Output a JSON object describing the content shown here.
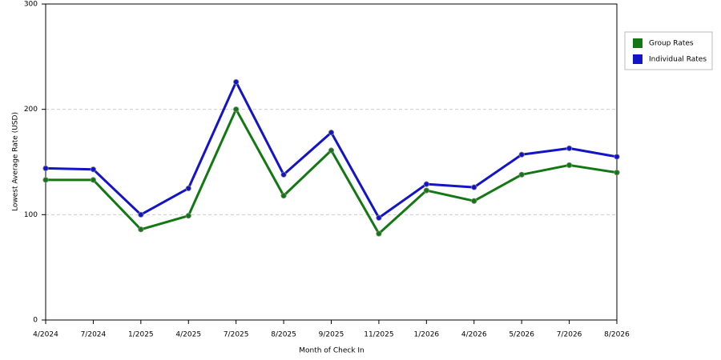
{
  "chart_data": {
    "type": "line",
    "x_label": "Month of Check In",
    "y_label": "Lowest Average Rate (USD)",
    "categories": [
      "4/2024",
      "7/2024",
      "1/2025",
      "4/2025",
      "7/2025",
      "8/2025",
      "9/2025",
      "11/2025",
      "1/2026",
      "4/2026",
      "5/2026",
      "7/2026",
      "8/2026"
    ],
    "series": [
      {
        "name": "Group Rates",
        "color": "#137813",
        "values": [
          133,
          133,
          86,
          99,
          200,
          118,
          161,
          82,
          123,
          113,
          138,
          147,
          140
        ]
      },
      {
        "name": "Individual Rates",
        "color": "#1313c8",
        "values": [
          144,
          143,
          100,
          125,
          226,
          138,
          178,
          97,
          129,
          126,
          157,
          163,
          155
        ]
      }
    ],
    "ylim": [
      0,
      300
    ],
    "yticks": [
      0,
      100,
      200,
      300
    ],
    "grid": true,
    "legend": "right"
  }
}
